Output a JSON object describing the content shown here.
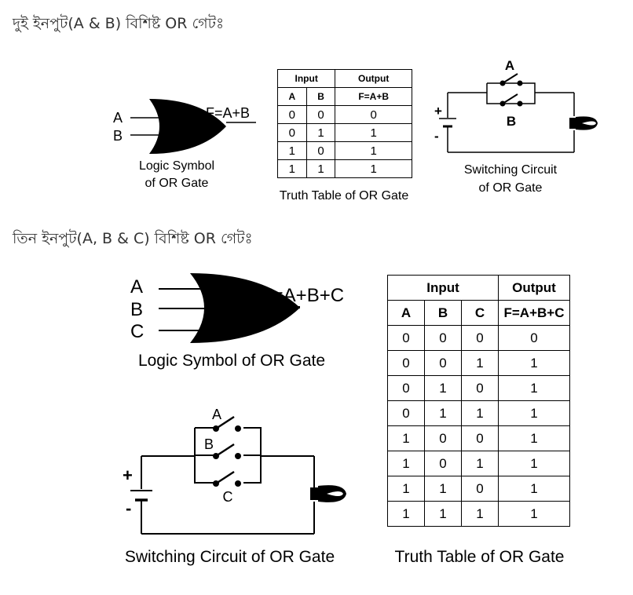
{
  "section1": {
    "heading": "দুই ইনপুট(A & B) বিশিষ্ট OR গেটঃ",
    "symbol": {
      "inputs": [
        "A",
        "B"
      ],
      "output": "F=A+B",
      "caption_line1": "Logic Symbol",
      "caption_line2": "of OR Gate"
    },
    "truth_table": {
      "group_headers": [
        "Input",
        "Output"
      ],
      "columns": [
        "A",
        "B",
        "F=A+B"
      ],
      "rows": [
        [
          "0",
          "0",
          "0"
        ],
        [
          "0",
          "1",
          "1"
        ],
        [
          "1",
          "0",
          "1"
        ],
        [
          "1",
          "1",
          "1"
        ]
      ],
      "caption": "Truth Table of OR Gate"
    },
    "circuit": {
      "switch_labels": [
        "A",
        "B"
      ],
      "plus": "+",
      "minus": "-",
      "caption_line1": "Switching Circuit",
      "caption_line2": "of OR Gate"
    }
  },
  "section2": {
    "heading": "তিন ইনপুট(A, B & C) বিশিষ্ট OR গেটঃ",
    "symbol": {
      "inputs": [
        "A",
        "B",
        "C"
      ],
      "output": "F=A+B+C",
      "caption": "Logic Symbol of OR Gate"
    },
    "truth_table": {
      "group_headers": [
        "Input",
        "Output"
      ],
      "columns": [
        "A",
        "B",
        "C",
        "F=A+B+C"
      ],
      "rows": [
        [
          "0",
          "0",
          "0",
          "0"
        ],
        [
          "0",
          "0",
          "1",
          "1"
        ],
        [
          "0",
          "1",
          "0",
          "1"
        ],
        [
          "0",
          "1",
          "1",
          "1"
        ],
        [
          "1",
          "0",
          "0",
          "1"
        ],
        [
          "1",
          "0",
          "1",
          "1"
        ],
        [
          "1",
          "1",
          "0",
          "1"
        ],
        [
          "1",
          "1",
          "1",
          "1"
        ]
      ],
      "caption": "Truth Table of OR Gate"
    },
    "circuit": {
      "switch_labels": [
        "A",
        "B",
        "C"
      ],
      "plus": "+",
      "minus": "-",
      "caption": "Switching Circuit of OR Gate"
    }
  }
}
